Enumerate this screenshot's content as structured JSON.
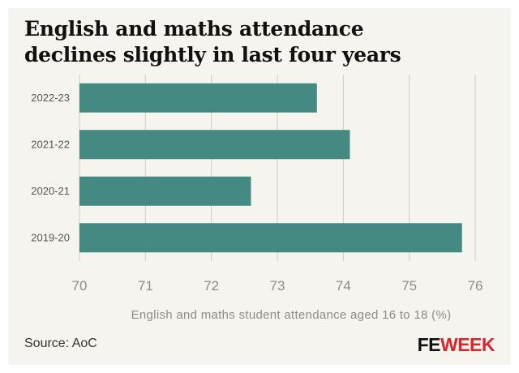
{
  "header": {
    "title_line1": "English and maths attendance",
    "title_line2": "declines slightly in last four years"
  },
  "footer": {
    "source": "Source: AoC",
    "logo_left": "FE",
    "logo_right": "WEEK"
  },
  "colors": {
    "bar": "#448a82",
    "background": "#f6f4ee",
    "grid": "#cfccc4",
    "tick_text": "#8c8c86",
    "logo_accent": "#d7262d"
  },
  "chart_data": {
    "type": "bar",
    "orientation": "horizontal",
    "title": "English and maths attendance declines slightly in last four years",
    "xlabel": "English and maths student attendance aged 16 to 18 (%)",
    "ylabel": "",
    "categories": [
      "2022-23",
      "2021-22",
      "2020-21",
      "2019-20"
    ],
    "values": [
      73.6,
      74.1,
      72.6,
      75.8
    ],
    "xlim": [
      70,
      76
    ],
    "xticks": [
      70,
      71,
      72,
      73,
      74,
      75,
      76
    ],
    "grid": "vertical",
    "legend": "none"
  }
}
